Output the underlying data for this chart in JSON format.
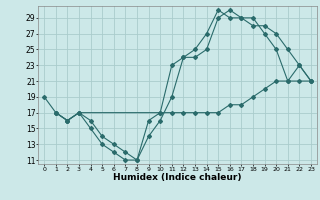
{
  "title": "",
  "xlabel": "Humidex (Indice chaleur)",
  "ylabel": "",
  "bg_color": "#cce8e8",
  "line_color": "#2a6b6b",
  "grid_color": "#aacccc",
  "xlim": [
    -0.5,
    23.5
  ],
  "ylim": [
    10.5,
    30.5
  ],
  "yticks": [
    11,
    13,
    15,
    17,
    19,
    21,
    23,
    25,
    27,
    29
  ],
  "xticks": [
    0,
    1,
    2,
    3,
    4,
    5,
    6,
    7,
    8,
    9,
    10,
    11,
    12,
    13,
    14,
    15,
    16,
    17,
    18,
    19,
    20,
    21,
    22,
    23
  ],
  "line1_x": [
    0,
    1,
    2,
    3,
    4,
    5,
    6,
    7,
    8,
    9,
    10,
    11,
    12,
    13,
    14,
    15,
    16,
    17,
    18,
    19,
    20,
    21,
    22,
    23
  ],
  "line1_y": [
    19,
    17,
    16,
    17,
    15,
    13,
    12,
    11,
    11,
    14,
    16,
    19,
    24,
    24,
    25,
    29,
    30,
    29,
    29,
    27,
    25,
    21,
    23,
    21
  ],
  "line2_x": [
    1,
    2,
    3,
    10,
    11,
    12,
    13,
    14,
    15,
    16,
    17,
    18,
    19,
    20,
    21,
    22,
    23
  ],
  "line2_y": [
    17,
    16,
    17,
    17,
    17,
    17,
    17,
    17,
    17,
    18,
    18,
    19,
    20,
    21,
    21,
    21,
    21
  ],
  "line3_x": [
    1,
    2,
    3,
    4,
    5,
    6,
    7,
    8,
    9,
    10,
    11,
    12,
    13,
    14,
    15,
    16,
    17,
    18,
    19,
    20,
    21,
    22,
    23
  ],
  "line3_y": [
    17,
    16,
    17,
    16,
    14,
    13,
    12,
    11,
    16,
    17,
    23,
    24,
    25,
    27,
    30,
    29,
    29,
    28,
    28,
    27,
    25,
    23,
    21
  ]
}
